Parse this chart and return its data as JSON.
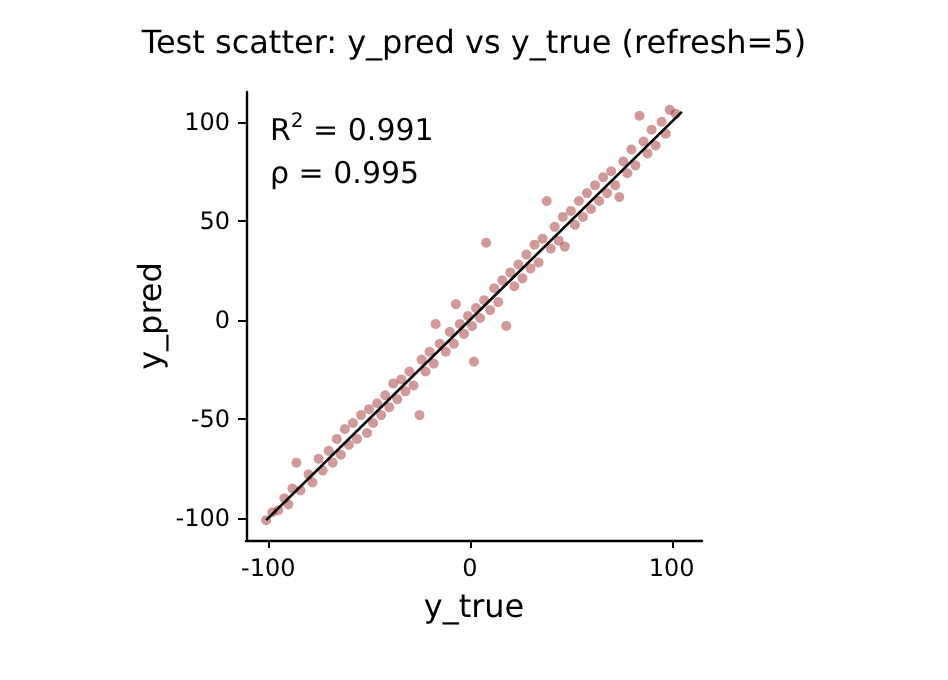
{
  "chart_data": {
    "type": "scatter",
    "title": "Test scatter: y_pred vs y_true (refresh=5)",
    "xlabel": "y_true",
    "ylabel": "y_pred",
    "annotations": [
      "R$^{2}$ = 0.991",
      "ρ = 0.995"
    ],
    "xlim": [
      -111,
      115
    ],
    "ylim": [
      -111,
      115
    ],
    "xticks": [
      -100,
      0,
      100
    ],
    "yticks": [
      -100,
      -50,
      0,
      50,
      100
    ],
    "grid": false,
    "marker": "circle",
    "series": [
      {
        "color": "#8b0000",
        "x": [
          -101,
          -98,
          -95,
          -92,
          -90,
          -88,
          -86,
          -84,
          -80,
          -78,
          -75,
          -73,
          -70,
          -68,
          -66,
          -64,
          -62,
          -60,
          -58,
          -56,
          -54,
          -51,
          -50,
          -48,
          -46,
          -44,
          -42,
          -40,
          -38,
          -36,
          -34,
          -32,
          -30,
          -28,
          -25,
          -24,
          -22,
          -20,
          -18,
          -17,
          -15,
          -12,
          -10,
          -8,
          -7,
          -5,
          -3,
          -1,
          1,
          2,
          3,
          5,
          7,
          8,
          10,
          12,
          14,
          16,
          18,
          20,
          22,
          24,
          26,
          28,
          30,
          32,
          34,
          36,
          38,
          40,
          42,
          44,
          46,
          47,
          50,
          52,
          54,
          56,
          58,
          60,
          62,
          64,
          66,
          68,
          70,
          72,
          74,
          76,
          78,
          80,
          82,
          84,
          86,
          88,
          90,
          92,
          95,
          97,
          99,
          102
        ],
        "values": [
          -101,
          -97,
          -96,
          -90,
          -93,
          -85,
          -72,
          -86,
          -78,
          -82,
          -70,
          -76,
          -66,
          -72,
          -60,
          -68,
          -55,
          -63,
          -52,
          -60,
          -48,
          -57,
          -45,
          -52,
          -42,
          -48,
          -38,
          -44,
          -32,
          -40,
          -30,
          -36,
          -26,
          -33,
          -48,
          -20,
          -26,
          -16,
          -22,
          -2,
          -12,
          -16,
          -6,
          -12,
          8,
          -2,
          -7,
          2,
          -3,
          -21,
          6,
          1,
          10,
          39,
          5,
          16,
          9,
          20,
          -3,
          24,
          17,
          28,
          21,
          33,
          26,
          38,
          29,
          41,
          60,
          36,
          47,
          40,
          52,
          37,
          55,
          48,
          60,
          52,
          64,
          56,
          68,
          60,
          72,
          64,
          75,
          68,
          62,
          80,
          74,
          86,
          78,
          103,
          90,
          84,
          96,
          88,
          100,
          94,
          106,
          104
        ]
      },
      {
        "type": "line",
        "color": "#000000",
        "marker": "none",
        "x": [
          -101,
          105
        ],
        "values": [
          -101,
          105
        ]
      }
    ]
  }
}
